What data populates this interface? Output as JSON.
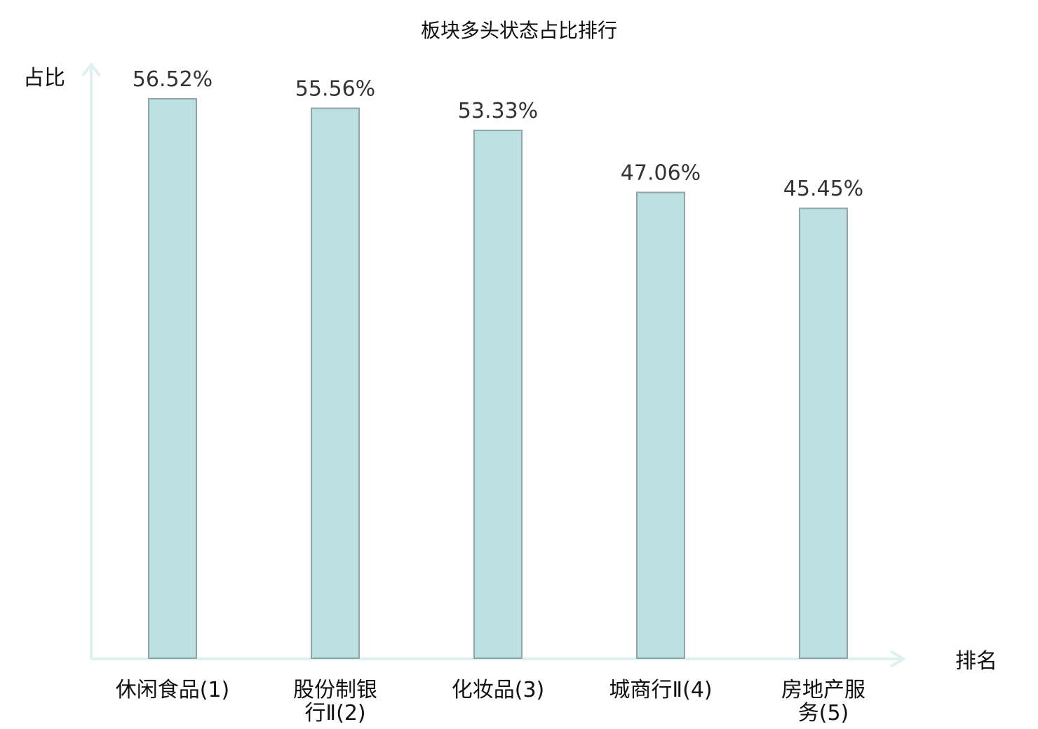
{
  "chart_data": {
    "type": "bar",
    "title": "板块多头状态占比排行",
    "ylabel": "占比",
    "xlabel": "排名",
    "categories": [
      [
        "休闲食品(1)"
      ],
      [
        "股份制银",
        "行Ⅱ(2)"
      ],
      [
        "化妆品(3)"
      ],
      [
        "城商行Ⅱ(4)"
      ],
      [
        "房地产服",
        "务(5)"
      ]
    ],
    "values": [
      56.52,
      55.56,
      53.33,
      47.06,
      45.45
    ],
    "value_labels": [
      "56.52%",
      "55.56%",
      "53.33%",
      "47.06%",
      "45.45%"
    ],
    "ylim": [
      0,
      60
    ],
    "grid": false,
    "legend": "none",
    "highlight_index": 0,
    "colors": {
      "bar_fill": "#bde1e2",
      "bar_stroke": "#8fa6a6",
      "axis": "#dff1ef",
      "highlight_label": "#e01010",
      "text": "#111111",
      "value_text": "#333333"
    }
  }
}
